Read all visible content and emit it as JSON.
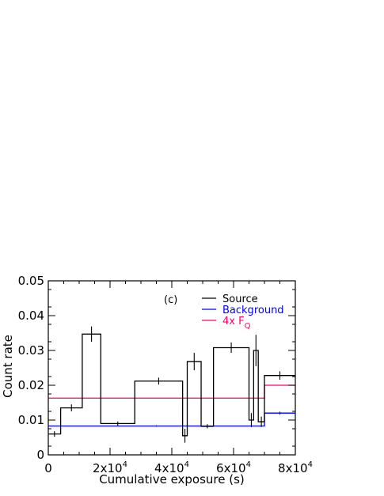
{
  "chart_data": {
    "type": "line",
    "panel_label": "(c)",
    "xlabel": "Cumulative exposure (s)",
    "ylabel": "Count rate",
    "xlim": [
      0,
      80000
    ],
    "ylim": [
      0,
      0.05
    ],
    "x_ticks": [
      {
        "value": 0,
        "mantissa": "0",
        "exp": ""
      },
      {
        "value": 20000,
        "mantissa": "2x10",
        "exp": "4"
      },
      {
        "value": 40000,
        "mantissa": "4x10",
        "exp": "4"
      },
      {
        "value": 60000,
        "mantissa": "6x10",
        "exp": "4"
      },
      {
        "value": 80000,
        "mantissa": "8x10",
        "exp": "4"
      }
    ],
    "y_ticks": [
      "0",
      "0.01",
      "0.02",
      "0.03",
      "0.04",
      "0.05"
    ],
    "y_tick_values": [
      0,
      0.01,
      0.02,
      0.03,
      0.04,
      0.05
    ],
    "legend": [
      {
        "name": "Source",
        "color": "#000000"
      },
      {
        "name": "Background",
        "color": "#0000ff"
      },
      {
        "name": "4x F",
        "sub": "Q",
        "color": "#ff0066"
      }
    ],
    "series": [
      {
        "name": "Source",
        "color": "#000000",
        "bins": [
          {
            "x0": 0,
            "x1": 4000,
            "y": 0.006,
            "err": 0.0008
          },
          {
            "x0": 4000,
            "x1": 11000,
            "y": 0.0135,
            "err": 0.001
          },
          {
            "x0": 11000,
            "x1": 17000,
            "y": 0.0347,
            "err": 0.0022
          },
          {
            "x0": 17000,
            "x1": 28000,
            "y": 0.009,
            "err": 0.0006
          },
          {
            "x0": 28000,
            "x1": 43500,
            "y": 0.0212,
            "err": 0.001
          },
          {
            "x0": 43500,
            "x1": 45000,
            "y": 0.0055,
            "err": 0.002
          },
          {
            "x0": 45000,
            "x1": 49500,
            "y": 0.0268,
            "err": 0.0025
          },
          {
            "x0": 49500,
            "x1": 53500,
            "y": 0.0082,
            "err": 0.0006
          },
          {
            "x0": 53500,
            "x1": 65000,
            "y": 0.0308,
            "err": 0.0015
          },
          {
            "x0": 65000,
            "x1": 66500,
            "y": 0.01,
            "err": 0.002
          },
          {
            "x0": 66500,
            "x1": 68000,
            "y": 0.03,
            "err": 0.0045
          },
          {
            "x0": 68000,
            "x1": 70000,
            "y": 0.0095,
            "err": 0.0015
          },
          {
            "x0": 70000,
            "x1": 80000,
            "y": 0.0228,
            "err": 0.0012
          }
        ]
      },
      {
        "name": "Background",
        "color": "#0000ff",
        "bins": [
          {
            "x0": 0,
            "x1": 70000,
            "y": 0.0083,
            "err": 0.0002
          },
          {
            "x0": 70000,
            "x1": 80000,
            "y": 0.012,
            "err": 0.0004
          }
        ]
      },
      {
        "name": "4x F_Q",
        "color": "#ff0066",
        "bins": [
          {
            "x0": 0,
            "x1": 70000,
            "y": 0.0163,
            "err": 0
          },
          {
            "x0": 70000,
            "x1": 80000,
            "y": 0.02,
            "err": 0
          }
        ]
      }
    ]
  }
}
